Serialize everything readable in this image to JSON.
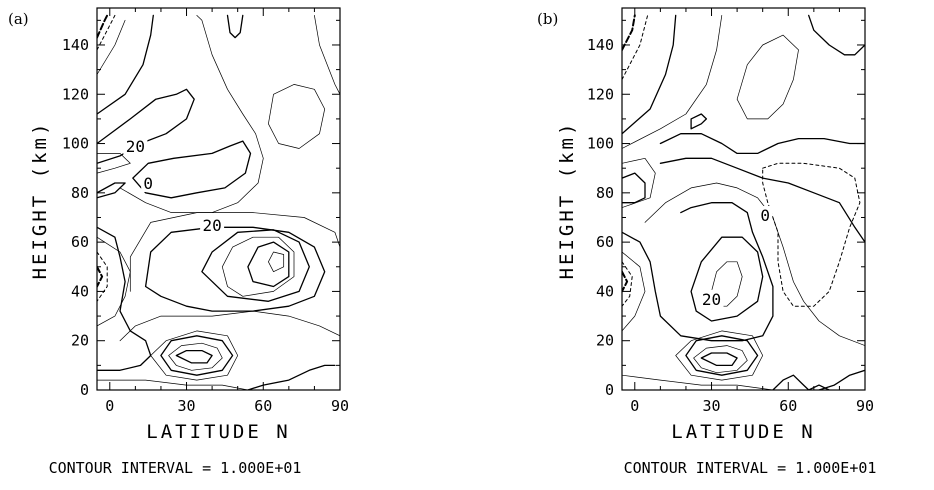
{
  "chart_data": [
    {
      "type": "contour",
      "panel_label": "(a)",
      "xlabel": "LATITUDE  N",
      "ylabel": "HEIGHT  (km)",
      "xlim": [
        -5,
        90
      ],
      "ylim": [
        0,
        155
      ],
      "xticks": [
        "0",
        "30",
        "60",
        "90"
      ],
      "yticks": [
        "0",
        "20",
        "40",
        "60",
        "80",
        "100",
        "120",
        "140"
      ],
      "contour_labels": [
        {
          "text": "20",
          "x": 10,
          "y": 99
        },
        {
          "text": "0",
          "x": 15,
          "y": 84
        },
        {
          "text": "20",
          "x": 40,
          "y": 67
        }
      ],
      "footer": "CONTOUR  INTERVAL  =  1.000E+01"
    },
    {
      "type": "contour",
      "panel_label": "(b)",
      "xlabel": "LATITUDE  N",
      "ylabel": "HEIGHT  (km)",
      "xlim": [
        -5,
        90
      ],
      "ylim": [
        0,
        155
      ],
      "xticks": [
        "0",
        "30",
        "60",
        "90"
      ],
      "yticks": [
        "0",
        "20",
        "40",
        "60",
        "80",
        "100",
        "120",
        "140"
      ],
      "contour_labels": [
        {
          "text": "0",
          "x": 51,
          "y": 71
        },
        {
          "text": "20",
          "x": 30,
          "y": 37
        }
      ],
      "footer": "CONTOUR  INTERVAL  =  1.000E+01"
    }
  ]
}
